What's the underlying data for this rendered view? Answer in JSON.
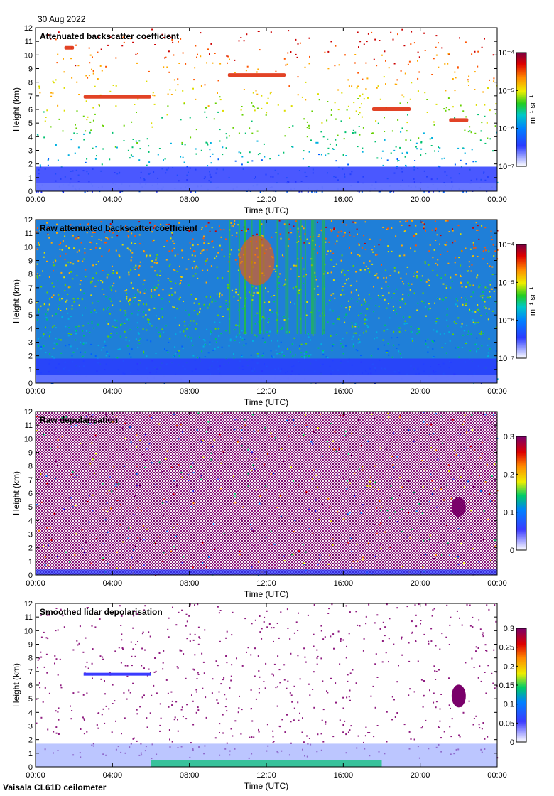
{
  "header": {
    "date": "30 Aug 2022"
  },
  "footer": {
    "instrument": "Vaisala CL61D ceilometer"
  },
  "chart_data": [
    {
      "type": "heatmap",
      "title": "Attenuated backscatter coefficient",
      "xlabel": "Time (UTC)",
      "ylabel": "Height (km)",
      "xticks": [
        "00:00",
        "04:00",
        "08:00",
        "12:00",
        "16:00",
        "20:00",
        "00:00"
      ],
      "yticks": [
        0,
        1,
        2,
        3,
        4,
        5,
        6,
        7,
        8,
        9,
        10,
        11,
        12
      ],
      "xlim": [
        "00:00",
        "24:00"
      ],
      "ylim": [
        0,
        12
      ],
      "colorbar": {
        "scale": "log",
        "unit": "m⁻¹ sr⁻¹",
        "ticks": [
          "10⁻⁷",
          "10⁻⁶",
          "10⁻⁵",
          "10⁻⁴"
        ],
        "range": [
          1e-07,
          0.0001
        ]
      },
      "features": [
        {
          "kind": "boundary layer",
          "time_start": "00:00",
          "time_end": "24:00",
          "height_top_km": 1.8
        },
        {
          "kind": "cloud layer",
          "time_start": "02:30",
          "time_end": "06:00",
          "height_km": 6.9
        },
        {
          "kind": "cloud",
          "time_start": "01:30",
          "time_end": "02:00",
          "height_km": 10.5
        },
        {
          "kind": "cloud",
          "time_start": "10:00",
          "time_end": "13:00",
          "height_km": 8.5
        },
        {
          "kind": "cloud",
          "time_start": "17:30",
          "time_end": "19:30",
          "height_km": 6.0
        },
        {
          "kind": "cloud",
          "time_start": "21:30",
          "time_end": "22:30",
          "height_km": 5.2
        }
      ]
    },
    {
      "type": "heatmap",
      "title": "Raw attenuated backscatter coefficient",
      "xlabel": "Time (UTC)",
      "ylabel": "Height (km)",
      "xticks": [
        "00:00",
        "04:00",
        "08:00",
        "12:00",
        "16:00",
        "20:00",
        "00:00"
      ],
      "yticks": [
        0,
        1,
        2,
        3,
        4,
        5,
        6,
        7,
        8,
        9,
        10,
        11,
        12
      ],
      "xlim": [
        "00:00",
        "24:00"
      ],
      "ylim": [
        0,
        12
      ],
      "colorbar": {
        "scale": "log",
        "unit": "m⁻¹ sr⁻¹",
        "ticks": [
          "10⁻⁷",
          "10⁻⁶",
          "10⁻⁵",
          "10⁻⁴"
        ],
        "range": [
          1e-07,
          0.0001
        ]
      }
    },
    {
      "type": "heatmap",
      "title": "Raw depolarisation",
      "xlabel": "Time (UTC)",
      "ylabel": "Height (km)",
      "xticks": [
        "00:00",
        "04:00",
        "08:00",
        "12:00",
        "16:00",
        "20:00",
        "00:00"
      ],
      "yticks": [
        0,
        1,
        2,
        3,
        4,
        5,
        6,
        7,
        8,
        9,
        10,
        11,
        12
      ],
      "xlim": [
        "00:00",
        "24:00"
      ],
      "ylim": [
        0,
        12
      ],
      "colorbar": {
        "scale": "linear",
        "ticks": [
          "0",
          "0.1",
          "0.2",
          "0.3"
        ],
        "range": [
          0,
          0.3
        ]
      }
    },
    {
      "type": "heatmap",
      "title": "Smoothed lidar depolarisation",
      "xlabel": "Time (UTC)",
      "ylabel": "Height (km)",
      "xticks": [
        "00:00",
        "04:00",
        "08:00",
        "12:00",
        "16:00",
        "20:00",
        "00:00"
      ],
      "yticks": [
        0,
        1,
        2,
        3,
        4,
        5,
        6,
        7,
        8,
        9,
        10,
        11,
        12
      ],
      "xlim": [
        "00:00",
        "24:00"
      ],
      "ylim": [
        0,
        12
      ],
      "colorbar": {
        "scale": "linear",
        "ticks": [
          "0",
          "0.05",
          "0.1",
          "0.15",
          "0.2",
          "0.25",
          "0.3"
        ],
        "range": [
          0,
          0.3
        ]
      }
    }
  ]
}
